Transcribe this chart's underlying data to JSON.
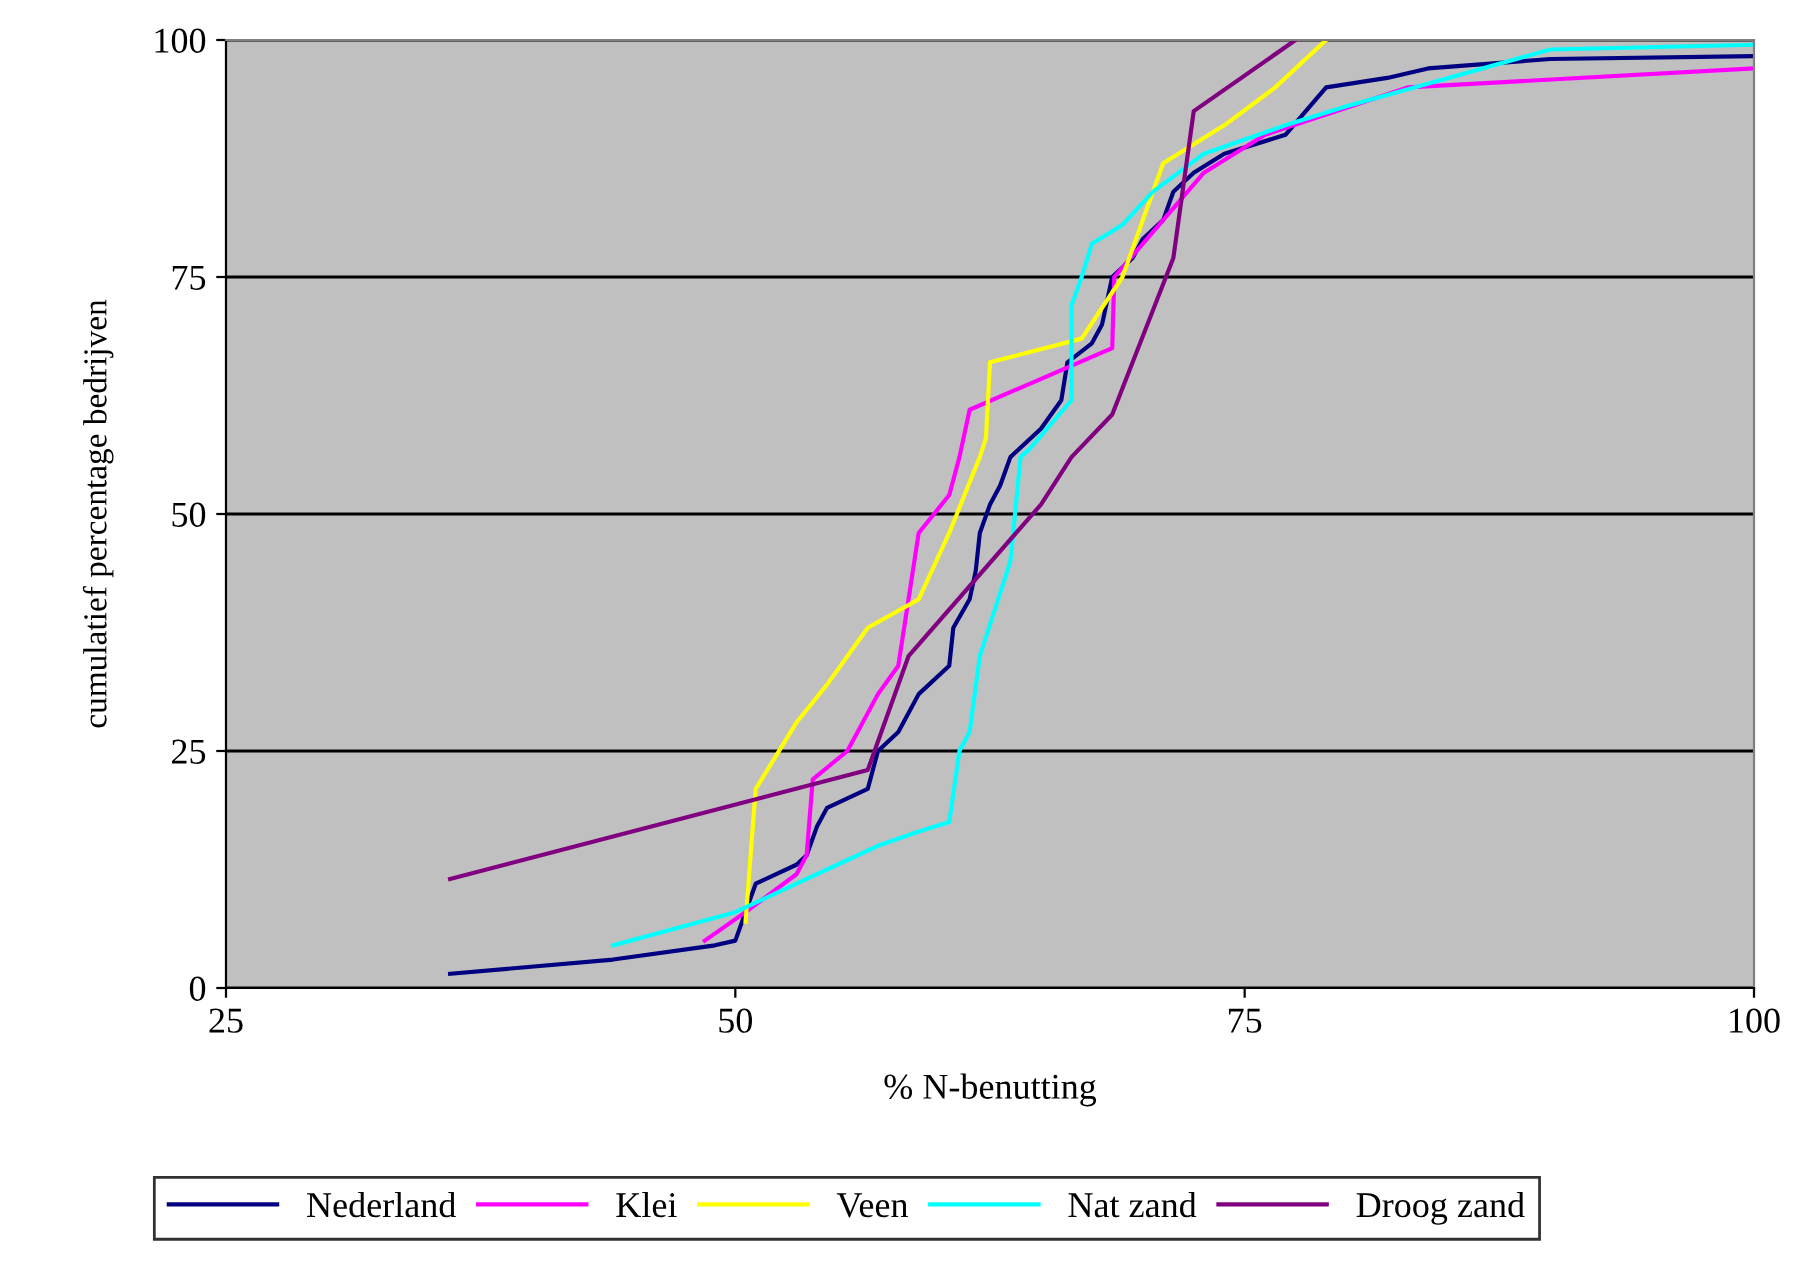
{
  "chart_data": {
    "type": "line",
    "xlabel": "% N-benutting",
    "ylabel": "cumulatief percentage bedrijven",
    "xlim": [
      25,
      100
    ],
    "xticks": [
      25,
      50,
      75,
      100
    ],
    "ylim": [
      0,
      100
    ],
    "yticks": [
      0,
      25,
      50,
      75,
      100
    ],
    "grid": "y",
    "legend": "bottom",
    "marker": "none",
    "series": [
      {
        "name": "Nederland",
        "color": "#000080",
        "x": [
          36,
          44,
          49,
          50,
          50.5,
          51,
          53,
          53.5,
          54,
          54.5,
          56.5,
          57,
          58,
          59,
          60.5,
          60.7,
          61.5,
          61.8,
          62,
          62.5,
          63,
          63.5,
          65,
          66,
          66.3,
          67.5,
          68,
          68.5,
          69.5,
          70,
          71,
          71.5,
          72.5,
          74,
          77,
          79,
          82,
          84,
          90,
          100
        ],
        "values": [
          1.5,
          3,
          4.5,
          5,
          8,
          11,
          13,
          14,
          17,
          19,
          21,
          25,
          27,
          31,
          34,
          38,
          41,
          44,
          48,
          51,
          53,
          56,
          59,
          62,
          66,
          68,
          70,
          75,
          77,
          79,
          81,
          84,
          86,
          88,
          90,
          95,
          96,
          97,
          98,
          98.3
        ]
      },
      {
        "name": "Klei",
        "color": "#ff00ff",
        "x": [
          48.5,
          50.5,
          53,
          53.5,
          53.8,
          55.5,
          57,
          58,
          59,
          60.5,
          61,
          61.5,
          68.5,
          68.6,
          71,
          73,
          76,
          83,
          100
        ],
        "values": [
          5,
          8,
          12,
          14,
          22,
          25,
          31,
          34,
          48,
          52,
          56,
          61,
          67.5,
          75,
          81,
          86,
          90,
          95,
          97
        ]
      },
      {
        "name": "Veen",
        "color": "#ffff00",
        "x": [
          50.5,
          51,
          53,
          54.5,
          56.5,
          59,
          60.5,
          62,
          62.3,
          62.5,
          67,
          69,
          71,
          74,
          76.5,
          79
        ],
        "values": [
          7,
          21,
          28,
          32,
          38,
          41,
          48,
          56,
          58,
          66,
          68.5,
          75,
          87,
          91,
          95,
          100
        ]
      },
      {
        "name": "Nat zand",
        "color": "#00ffff",
        "x": [
          44,
          50,
          53,
          55,
          57,
          59,
          60.5,
          61,
          61.5,
          62,
          63.5,
          64,
          64.5,
          66.5,
          66.5,
          67,
          67.5,
          69,
          70.5,
          73,
          77,
          80,
          85,
          90,
          100
        ],
        "values": [
          4.5,
          8,
          11,
          13,
          15,
          16.5,
          17.5,
          25,
          27,
          35,
          45,
          56,
          57,
          62,
          72,
          75,
          78.5,
          80.5,
          84,
          88,
          91,
          93,
          96,
          99,
          99.5
        ]
      },
      {
        "name": "Droog zand",
        "color": "#800080",
        "x": [
          36,
          56.5,
          57,
          58.5,
          65,
          66.5,
          68.5,
          71.5,
          72.5,
          77.5
        ],
        "values": [
          11.5,
          23,
          26,
          35,
          51,
          56,
          60.5,
          77,
          92.5,
          100
        ]
      }
    ]
  }
}
